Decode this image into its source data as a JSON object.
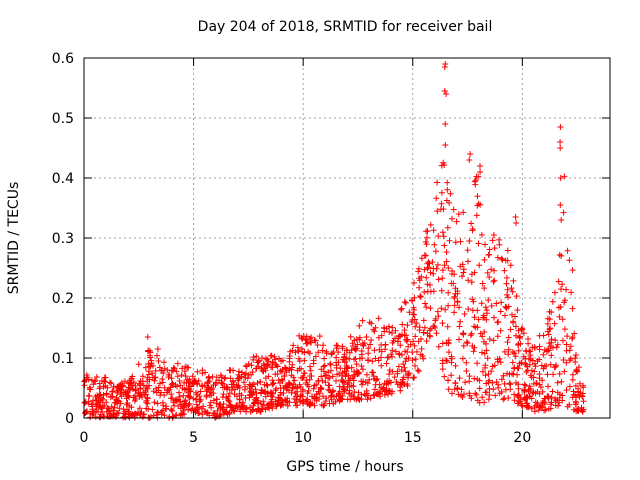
{
  "chart_data": {
    "type": "scatter",
    "title": "Day 204 of 2018, SRMTID for receiver bail",
    "xlabel": "GPS time / hours",
    "ylabel": "SRMTID / TECUs",
    "xlim": [
      0,
      24
    ],
    "ylim": [
      0,
      0.6
    ],
    "xticks": [
      0,
      5,
      10,
      15,
      20
    ],
    "xtick_labels": [
      "0",
      "5",
      "10",
      "15",
      "20"
    ],
    "yticks": [
      0,
      0.1,
      0.2,
      0.3,
      0.4,
      0.5,
      0.6
    ],
    "ytick_labels": [
      "0",
      "0.1",
      "0.2",
      "0.3",
      "0.4",
      "0.5",
      "0.6"
    ],
    "grid": true,
    "marker": "+",
    "color": "#ff0000",
    "envelope": {
      "description": "approximate upper and lower bounds of the scattered points (data units)",
      "x": [
        0,
        1,
        2,
        3,
        4,
        5,
        6,
        7,
        8,
        9,
        10,
        11,
        12,
        13,
        14,
        15,
        15.5,
        16,
        16.5,
        17,
        17.5,
        18,
        18.5,
        19,
        19.5,
        20,
        20.5,
        21,
        21.5,
        22,
        22.5,
        22.8
      ],
      "upper": [
        0.08,
        0.07,
        0.06,
        0.12,
        0.1,
        0.08,
        0.08,
        0.08,
        0.11,
        0.1,
        0.15,
        0.14,
        0.13,
        0.18,
        0.15,
        0.22,
        0.3,
        0.38,
        0.45,
        0.33,
        0.43,
        0.42,
        0.3,
        0.33,
        0.26,
        0.15,
        0.12,
        0.15,
        0.22,
        0.48,
        0.1,
        0.05
      ],
      "lower": [
        0,
        0,
        0,
        0,
        0,
        0.01,
        0,
        0.01,
        0.01,
        0.02,
        0.02,
        0.02,
        0.03,
        0.03,
        0.04,
        0.05,
        0.1,
        0.15,
        0.05,
        0.03,
        0.03,
        0.02,
        0.03,
        0.03,
        0.03,
        0.02,
        0.01,
        0.01,
        0.02,
        0.02,
        0.01,
        0.01
      ]
    },
    "spikes": [
      {
        "x": 16.5,
        "values": [
          0.59,
          0.585,
          0.545,
          0.54,
          0.49,
          0.455
        ]
      },
      {
        "x": 17.6,
        "values": [
          0.44,
          0.43
        ]
      },
      {
        "x": 21.75,
        "values": [
          0.485,
          0.46,
          0.45,
          0.4,
          0.355,
          0.33
        ]
      },
      {
        "x": 18.1,
        "values": [
          0.42,
          0.41
        ]
      },
      {
        "x": 19.7,
        "values": [
          0.335,
          0.325
        ]
      },
      {
        "x": 2.9,
        "values": [
          0.135
        ]
      },
      {
        "x": 3.4,
        "values": [
          0.115
        ]
      }
    ],
    "n_points": 1900
  }
}
